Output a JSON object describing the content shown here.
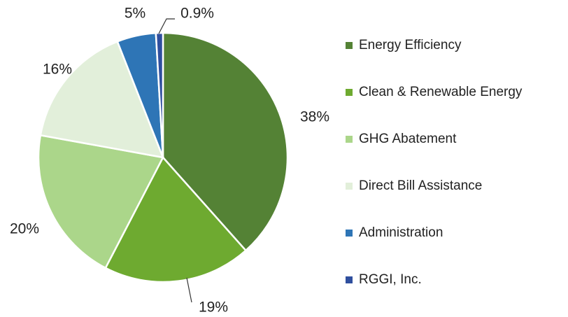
{
  "chart_data": {
    "type": "pie",
    "categories": [
      "Energy Efficiency",
      "Clean & Renewable Energy",
      "GHG Abatement",
      "Direct Bill Assistance",
      "Administration",
      "RGGI, Inc."
    ],
    "values": [
      38,
      19,
      20,
      16,
      5,
      0.9
    ],
    "value_labels": [
      "38%",
      "19%",
      "20%",
      "16%",
      "5%",
      "0.9%"
    ],
    "colors": [
      "#548235",
      "#6eaa30",
      "#abd68a",
      "#e2efda",
      "#2e75b6",
      "#2f4f9e"
    ],
    "legend": "right"
  }
}
